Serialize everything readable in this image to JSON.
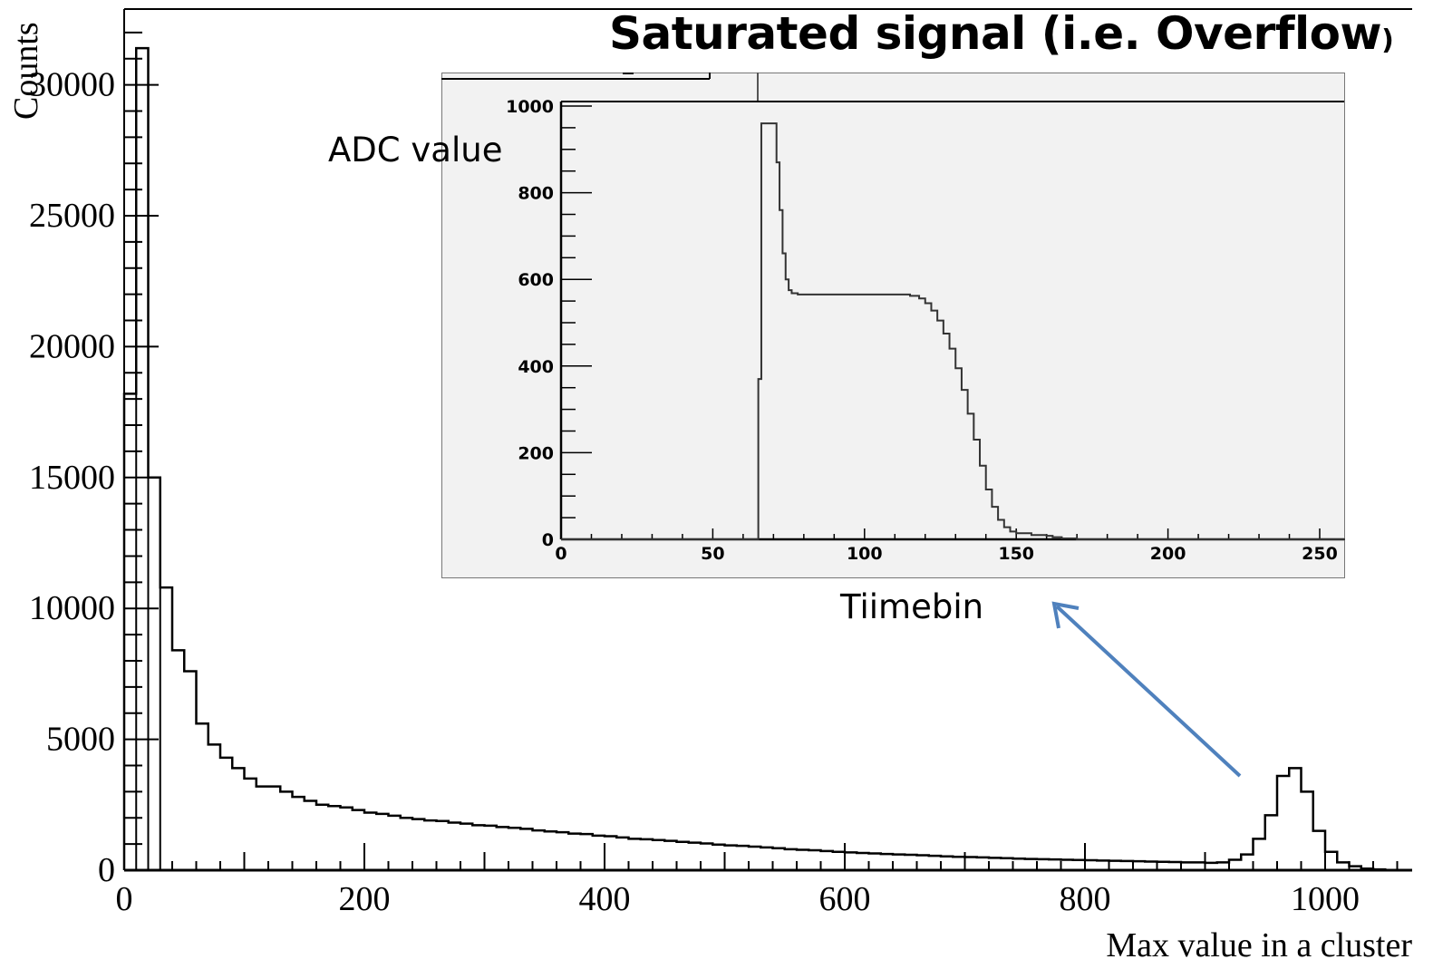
{
  "chart_data": [
    {
      "type": "histogram",
      "title": "",
      "xlabel": "Max value in a cluster",
      "ylabel": "Counts",
      "xlim": [
        0,
        1070
      ],
      "ylim": [
        0,
        33000
      ],
      "xticks": [
        "0",
        "200",
        "400",
        "600",
        "800",
        "1000"
      ],
      "xtick_values": [
        0,
        200,
        400,
        600,
        800,
        1000
      ],
      "yticks": [
        "0",
        "5000",
        "10000",
        "15000",
        "20000",
        "25000",
        "30000"
      ],
      "ytick_values": [
        0,
        5000,
        10000,
        15000,
        20000,
        25000,
        30000
      ],
      "bin_width": 10,
      "bin_start": 0,
      "values": [
        18200,
        31400,
        15000,
        10800,
        8400,
        7600,
        5600,
        4800,
        4300,
        3900,
        3500,
        3200,
        3200,
        3000,
        2800,
        2650,
        2500,
        2450,
        2400,
        2300,
        2200,
        2150,
        2080,
        2000,
        1950,
        1900,
        1880,
        1820,
        1780,
        1720,
        1700,
        1650,
        1620,
        1580,
        1520,
        1480,
        1450,
        1400,
        1380,
        1320,
        1300,
        1250,
        1200,
        1180,
        1150,
        1120,
        1080,
        1050,
        1020,
        980,
        950,
        930,
        900,
        870,
        840,
        800,
        780,
        760,
        730,
        700,
        680,
        660,
        640,
        620,
        600,
        590,
        570,
        550,
        530,
        510,
        500,
        490,
        470,
        460,
        440,
        430,
        420,
        410,
        400,
        390,
        380,
        370,
        360,
        350,
        340,
        330,
        320,
        310,
        300,
        300,
        280,
        300,
        400,
        600,
        1200,
        2100,
        3600,
        3900,
        3000,
        1500,
        700,
        300,
        150,
        60,
        30,
        10,
        5
      ]
    },
    {
      "type": "line",
      "title": "",
      "xlabel": "Tiimebin",
      "ylabel": "ADC value",
      "xlim": [
        0,
        260
      ],
      "ylim": [
        0,
        1000
      ],
      "xticks": [
        "0",
        "50",
        "100",
        "150",
        "200",
        "250"
      ],
      "xtick_values": [
        0,
        50,
        100,
        150,
        200,
        250
      ],
      "yticks": [
        "0",
        "200",
        "400",
        "600",
        "800",
        "1000"
      ],
      "ytick_values": [
        0,
        200,
        400,
        600,
        800,
        1000
      ],
      "x": [
        0,
        64,
        65,
        66,
        70,
        71,
        72,
        73,
        74,
        75,
        76,
        78,
        80,
        90,
        100,
        110,
        115,
        118,
        120,
        122,
        124,
        126,
        128,
        130,
        132,
        134,
        136,
        138,
        140,
        142,
        144,
        146,
        148,
        150,
        155,
        160,
        162,
        165,
        170,
        260
      ],
      "y": [
        0,
        0,
        370,
        960,
        960,
        870,
        760,
        660,
        600,
        575,
        568,
        565,
        565,
        565,
        565,
        565,
        562,
        556,
        545,
        528,
        505,
        475,
        440,
        395,
        345,
        290,
        230,
        170,
        115,
        75,
        45,
        28,
        18,
        14,
        10,
        8,
        5,
        2,
        0,
        0
      ]
    }
  ],
  "annotations": {
    "title_main": "Saturated signal (i.e. Overflow",
    "title_paren": ")",
    "adc_label": "ADC value",
    "time_label": "Tiimebin"
  },
  "colors": {
    "arrow": "#4f81bd",
    "inset_background": "#f2f2f2",
    "axis": "#000000"
  }
}
